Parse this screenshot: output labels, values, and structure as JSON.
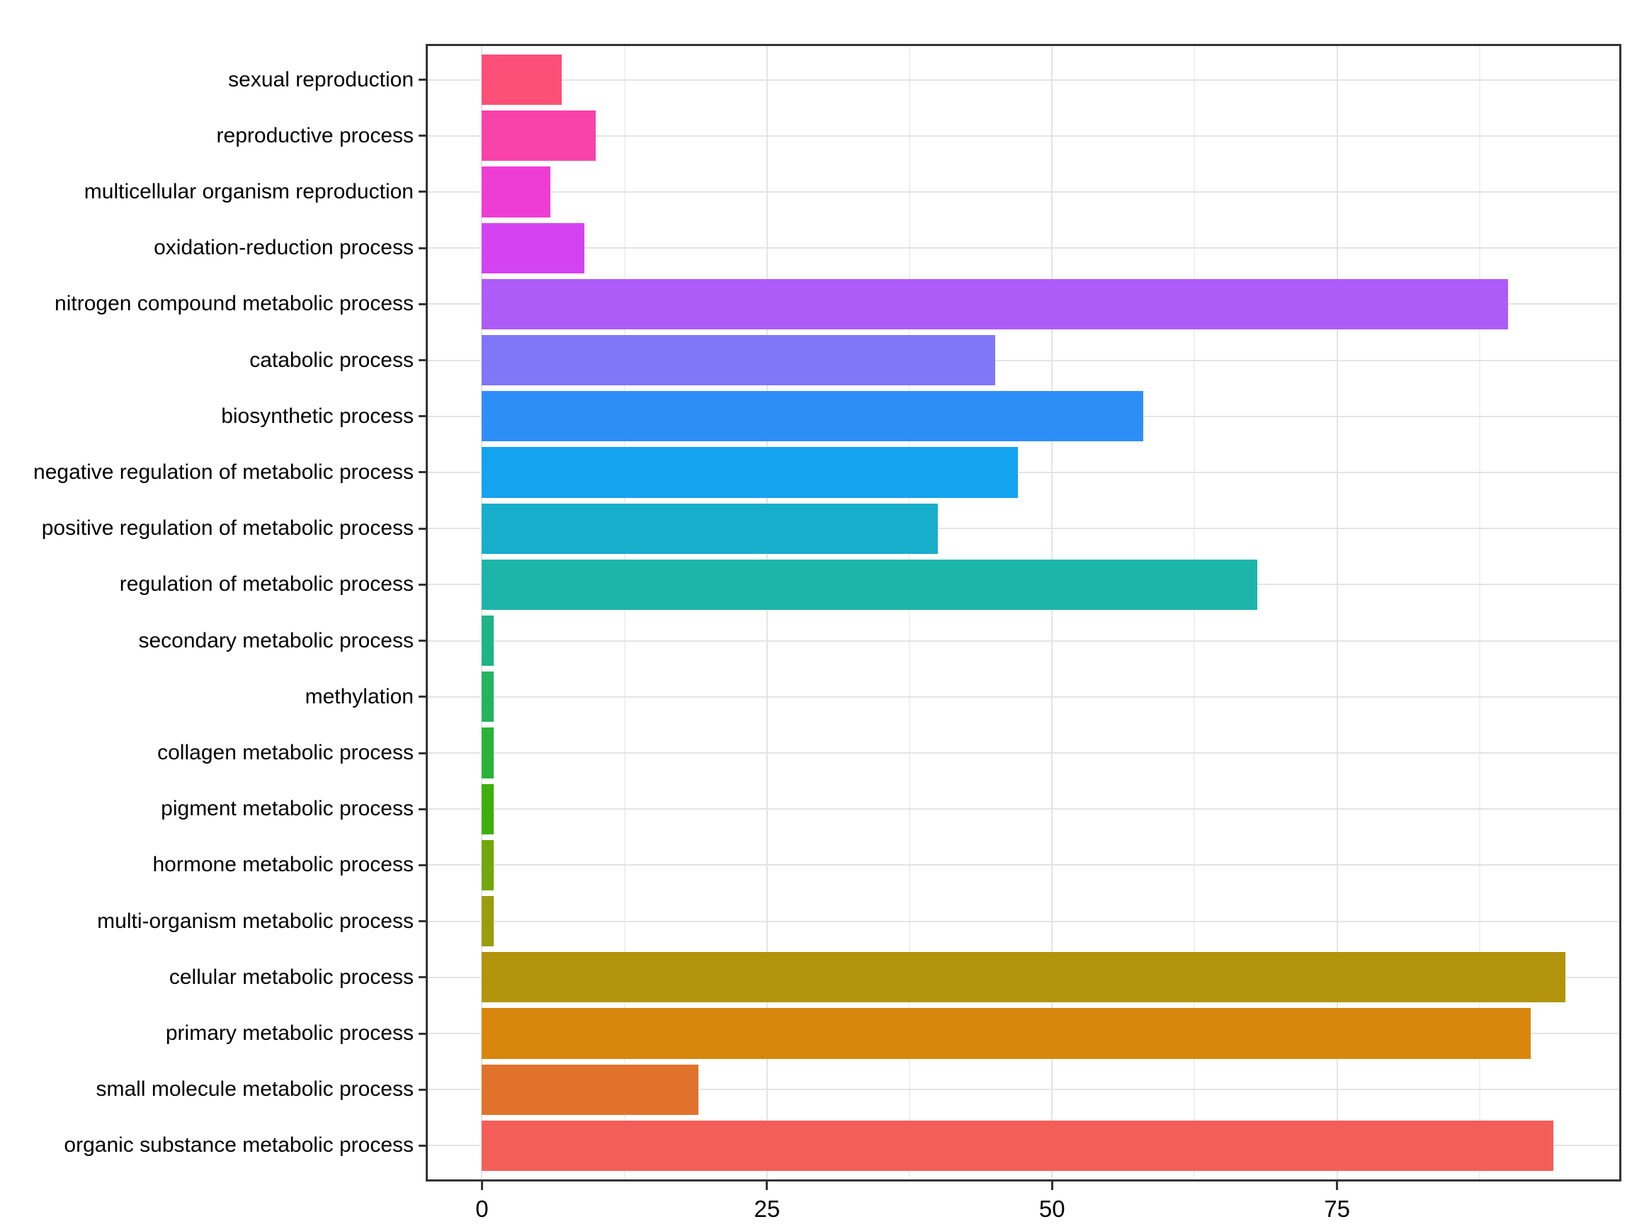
{
  "chart_data": {
    "type": "bar",
    "orientation": "horizontal",
    "title": "",
    "xlabel": "",
    "ylabel": "",
    "legend": "none",
    "grid": "major vertical at ticks, minor vertical midway, major horizontal per category",
    "x_ticks": [
      0,
      25,
      50,
      75
    ],
    "x_minor_gridlines": [
      12.5,
      37.5,
      62.5,
      87.5
    ],
    "xlim": [
      -4.75,
      99.75
    ],
    "categories_top_to_bottom": [
      "sexual reproduction",
      "reproductive process",
      "multicellular organism reproduction",
      "oxidation-reduction process",
      "nitrogen compound metabolic process",
      "catabolic process",
      "biosynthetic process",
      "negative regulation of metabolic process",
      "positive regulation of metabolic process",
      "regulation of metabolic process",
      "secondary metabolic process",
      "methylation",
      "collagen metabolic process",
      "pigment metabolic process",
      "hormone metabolic process",
      "multi-organism metabolic process",
      "cellular metabolic process",
      "primary metabolic process",
      "small molecule metabolic process",
      "organic substance metabolic process"
    ],
    "values": [
      7,
      10,
      6,
      9,
      90,
      45,
      58,
      47,
      40,
      68,
      1,
      1,
      1,
      1,
      1,
      1,
      95,
      92,
      19,
      94
    ],
    "bar_colors": [
      "#FB4F77",
      "#F942A9",
      "#EF3CD3",
      "#D343F1",
      "#AD5CF7",
      "#8076F8",
      "#2E8EF8",
      "#14A3EE",
      "#17AECC",
      "#1DB5A9",
      "#1EB586",
      "#24B460",
      "#2AB338",
      "#3FAF0C",
      "#71A80B",
      "#9A9D0B",
      "#B1940C",
      "#D8860D",
      "#E1722B",
      "#F35E58"
    ]
  },
  "styles": {
    "background": "#FFFFFF",
    "panel_border_color": "#333333",
    "grid_major_color": "#E4E4E4",
    "grid_minor_color": "#F0F0F0",
    "tick_color": "#333333",
    "axis_text_color": "#000000"
  }
}
